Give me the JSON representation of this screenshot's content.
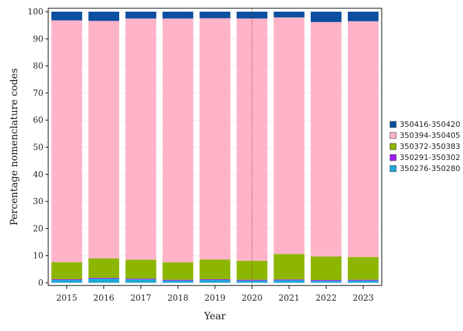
{
  "chart_data": {
    "type": "bar",
    "stacked": true,
    "xlabel": "Year",
    "ylabel": "Percentage nomenclature codes",
    "ylim": [
      0,
      100
    ],
    "yticks": [
      0,
      10,
      20,
      30,
      40,
      50,
      60,
      70,
      80,
      90,
      100
    ],
    "grid": true,
    "legend_position": "right",
    "reference_line": {
      "x": "2020",
      "style": "dotted",
      "color": "#8b3a3a"
    },
    "categories": [
      "2015",
      "2016",
      "2017",
      "2018",
      "2019",
      "2020",
      "2021",
      "2022",
      "2023"
    ],
    "series": [
      {
        "name": "350276-350280",
        "color": "#1fa8d6",
        "values": [
          1.0,
          1.5,
          1.2,
          0.8,
          1.0,
          0.8,
          0.9,
          0.7,
          0.8
        ]
      },
      {
        "name": "350291-350302",
        "color": "#a020f0",
        "values": [
          0.3,
          0.3,
          0.3,
          0.3,
          0.3,
          0.3,
          0.3,
          0.3,
          0.3
        ]
      },
      {
        "name": "350372-350383",
        "color": "#8db600",
        "values": [
          6.3,
          7.2,
          7.0,
          6.4,
          7.3,
          7.0,
          9.4,
          8.7,
          8.4
        ]
      },
      {
        "name": "350394-350405",
        "color": "#ffb3c8",
        "values": [
          89.2,
          87.6,
          89.0,
          90.0,
          89.0,
          89.4,
          87.3,
          86.5,
          87.0
        ]
      },
      {
        "name": "350416-350420",
        "color": "#0b4fa0",
        "values": [
          3.2,
          3.4,
          2.5,
          2.5,
          2.4,
          2.5,
          2.1,
          3.8,
          3.5
        ]
      }
    ],
    "legend_order": [
      "350416-350420",
      "350394-350405",
      "350372-350383",
      "350291-350302",
      "350276-350280"
    ]
  }
}
